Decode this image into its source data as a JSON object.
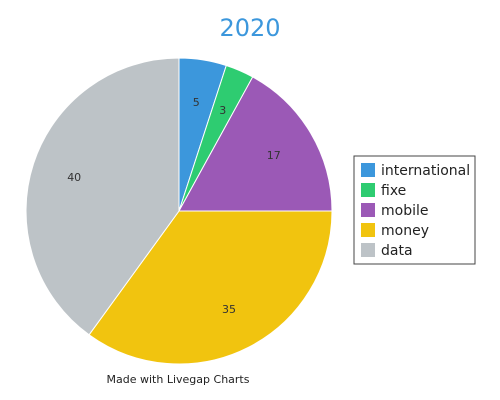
{
  "chart_data": {
    "type": "pie",
    "title": "2020",
    "categories": [
      "international",
      "fixe",
      "mobile",
      "money",
      "data"
    ],
    "values": [
      5,
      3,
      17,
      35,
      40
    ],
    "colors": [
      "#3c97dc",
      "#2ecc71",
      "#9b59b6",
      "#f1c40f",
      "#bdc3c7"
    ],
    "legend_position": "right"
  },
  "footer": "Made with Livegap Charts",
  "colors": {
    "title": "#3c97dc"
  }
}
